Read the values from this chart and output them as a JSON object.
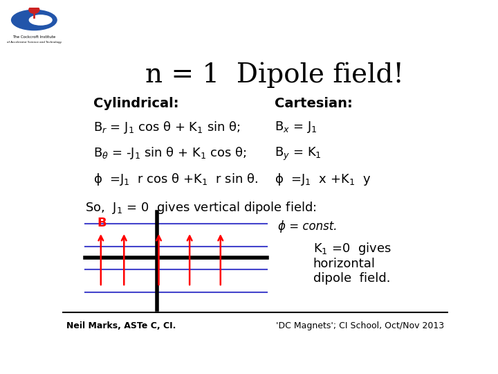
{
  "title": "n = 1  Dipole field!",
  "title_fontsize": 28,
  "background_color": "#ffffff",
  "text_color": "#000000",
  "footer_left": "Neil Marks, ASTe C, CI.",
  "footer_right": "'DC Magnets'; CI School, Oct/Nov 2013",
  "cylindrical_label": "Cylindrical:",
  "cartesian_label": "Cartesian:",
  "eq1": "B$_r$ = J$_1$ cos θ + K$_1$ sin θ;",
  "eq2": "B$_\\theta$ = -J$_1$ sin θ + K$_1$ cos θ;",
  "eq3": "ϕ  =J$_1$  r cos θ +K$_1$  r sin θ.",
  "eq4": "B$_x$ = J$_1$",
  "eq5": "B$_y$ = K$_1$",
  "eq6": "ϕ  =J$_1$  x +K$_1$  y",
  "so_text": "So,  J$_1$ = 0  gives vertical dipole field:",
  "k1_text": "K$_1$ =0  gives\nhorizontal\ndipole  field.",
  "phi_const": "ϕ = const.",
  "B_label": "B"
}
